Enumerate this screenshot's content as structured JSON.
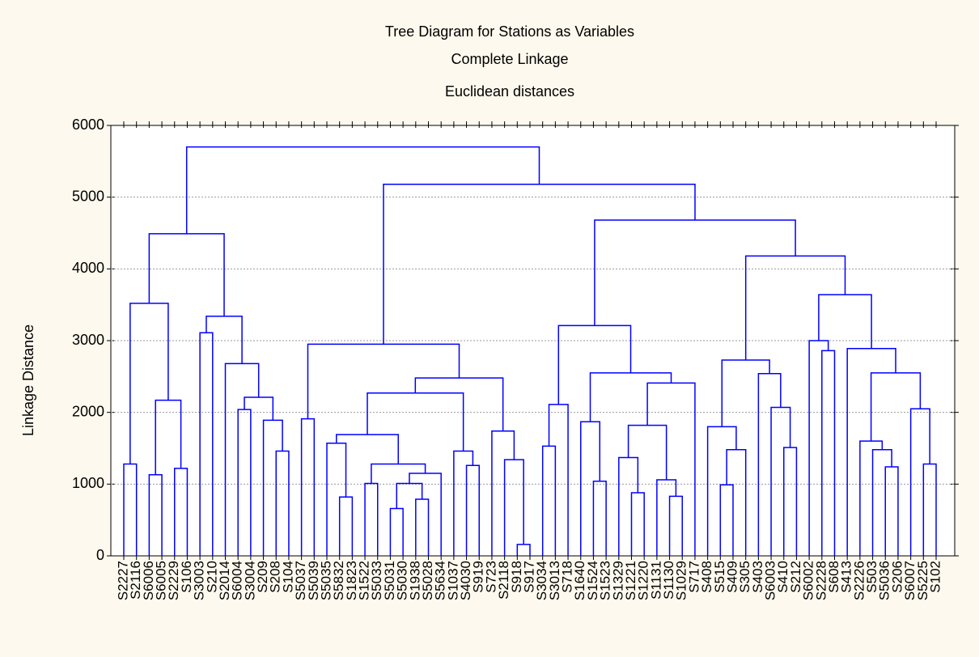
{
  "chart_data": {
    "type": "dendrogram",
    "title": "Tree Diagram for Stations as Variables",
    "subtitle": "Complete Linkage",
    "subtitle2": "Euclidean distances",
    "y_label": "Linkage Distance",
    "color": "#0000ff",
    "grid": true,
    "ylim": [
      0,
      6000
    ],
    "yticks": [
      0,
      1000,
      2000,
      3000,
      4000,
      5000,
      6000
    ],
    "categories": [
      "S2227",
      "S2116",
      "S6006",
      "S6005",
      "S2229",
      "S106",
      "S3003",
      "S210",
      "S2014",
      "S6004",
      "S3004",
      "S209",
      "S208",
      "S104",
      "S5037",
      "S5039",
      "S5035",
      "S5832",
      "S1823",
      "S1522",
      "S5033",
      "S5031",
      "S5030",
      "S1938",
      "S5028",
      "S5634",
      "S1037",
      "S4030",
      "S919",
      "S723",
      "S2118",
      "S918",
      "S917",
      "S3034",
      "S3013",
      "S718",
      "S1640",
      "S1524",
      "S1523",
      "S1329",
      "S1221",
      "S1220",
      "S1131",
      "S1130",
      "S1029",
      "S717",
      "S408",
      "S515",
      "S409",
      "S305",
      "S403",
      "S6003",
      "S410",
      "S212",
      "S6002",
      "S2228",
      "S608",
      "S413",
      "S2226",
      "S503",
      "S5036",
      "S206",
      "S6007",
      "S5225",
      "S102"
    ],
    "merges": [
      [
        0,
        1,
        1280
      ],
      [
        2,
        3,
        1130
      ],
      [
        4,
        5,
        1220
      ],
      [
        66,
        67,
        2170
      ],
      [
        65,
        68,
        3520
      ],
      [
        6,
        7,
        3110
      ],
      [
        9,
        10,
        2040
      ],
      [
        12,
        13,
        1460
      ],
      [
        11,
        72,
        1890
      ],
      [
        71,
        73,
        2210
      ],
      [
        8,
        74,
        2680
      ],
      [
        70,
        75,
        3340
      ],
      [
        69,
        76,
        4490
      ],
      [
        14,
        15,
        1910
      ],
      [
        17,
        18,
        820
      ],
      [
        16,
        79,
        1570
      ],
      [
        19,
        20,
        1010
      ],
      [
        21,
        22,
        660
      ],
      [
        23,
        24,
        790
      ],
      [
        82,
        83,
        1010
      ],
      [
        84,
        25,
        1150
      ],
      [
        81,
        85,
        1280
      ],
      [
        80,
        86,
        1690
      ],
      [
        27,
        28,
        1260
      ],
      [
        26,
        88,
        1460
      ],
      [
        87,
        89,
        2270
      ],
      [
        31,
        32,
        160
      ],
      [
        30,
        91,
        1340
      ],
      [
        29,
        92,
        1740
      ],
      [
        90,
        93,
        2480
      ],
      [
        78,
        94,
        2950
      ],
      [
        33,
        34,
        1530
      ],
      [
        96,
        35,
        2110
      ],
      [
        37,
        38,
        1040
      ],
      [
        36,
        98,
        1870
      ],
      [
        40,
        41,
        880
      ],
      [
        39,
        100,
        1370
      ],
      [
        43,
        44,
        830
      ],
      [
        42,
        102,
        1060
      ],
      [
        101,
        103,
        1820
      ],
      [
        104,
        45,
        2410
      ],
      [
        99,
        105,
        2550
      ],
      [
        97,
        106,
        3210
      ],
      [
        47,
        48,
        990
      ],
      [
        108,
        49,
        1480
      ],
      [
        46,
        109,
        1800
      ],
      [
        52,
        53,
        1510
      ],
      [
        51,
        111,
        2070
      ],
      [
        50,
        112,
        2540
      ],
      [
        110,
        113,
        2730
      ],
      [
        55,
        56,
        2860
      ],
      [
        54,
        115,
        3000
      ],
      [
        60,
        61,
        1240
      ],
      [
        59,
        117,
        1480
      ],
      [
        58,
        118,
        1600
      ],
      [
        63,
        64,
        1280
      ],
      [
        62,
        120,
        2050
      ],
      [
        119,
        121,
        2550
      ],
      [
        57,
        122,
        2890
      ],
      [
        116,
        123,
        3640
      ],
      [
        114,
        124,
        4180
      ],
      [
        107,
        125,
        4680
      ],
      [
        95,
        126,
        5180
      ],
      [
        77,
        127,
        5700
      ]
    ]
  }
}
